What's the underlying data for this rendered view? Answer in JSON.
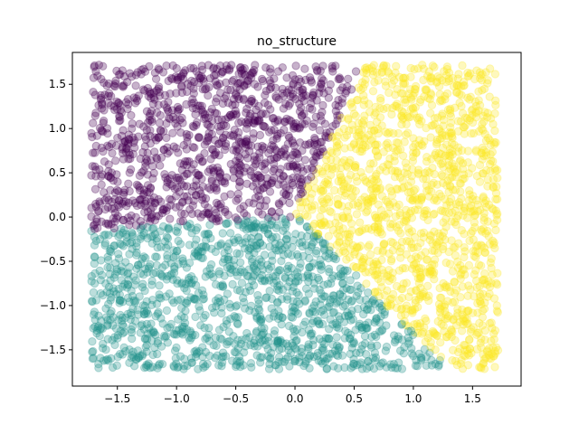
{
  "chart_data": {
    "type": "scatter",
    "title": "no_structure",
    "xlabel": "",
    "ylabel": "",
    "xlim": [
      -1.88,
      1.91
    ],
    "ylim": [
      -1.91,
      1.86
    ],
    "xticks": [
      -1.5,
      -1.0,
      -0.5,
      0.0,
      0.5,
      1.0,
      1.5
    ],
    "xtick_labels": [
      "−1.5",
      "−1.0",
      "−0.5",
      "0.0",
      "0.5",
      "1.0",
      "1.5"
    ],
    "yticks": [
      -1.5,
      -1.0,
      -0.5,
      0.0,
      0.5,
      1.0,
      1.5
    ],
    "ytick_labels": [
      "−1.5",
      "−1.0",
      "−0.5",
      "0.0",
      "0.5",
      "1.0",
      "1.5"
    ],
    "grid": false,
    "legend": "none",
    "point_alpha": 0.3,
    "clusters": [
      {
        "color": "#440154",
        "x_range": [
          -1.72,
          0.72
        ],
        "y_range": [
          -0.18,
          1.72
        ],
        "region": "upper-left"
      },
      {
        "color": "#21918c",
        "x_range": [
          -1.72,
          1.3
        ],
        "y_range": [
          -1.72,
          0.02
        ],
        "region": "lower-left"
      },
      {
        "color": "#fde725",
        "x_range": [
          -0.02,
          1.72
        ],
        "y_range": [
          -1.72,
          1.72
        ],
        "region": "right"
      }
    ]
  }
}
